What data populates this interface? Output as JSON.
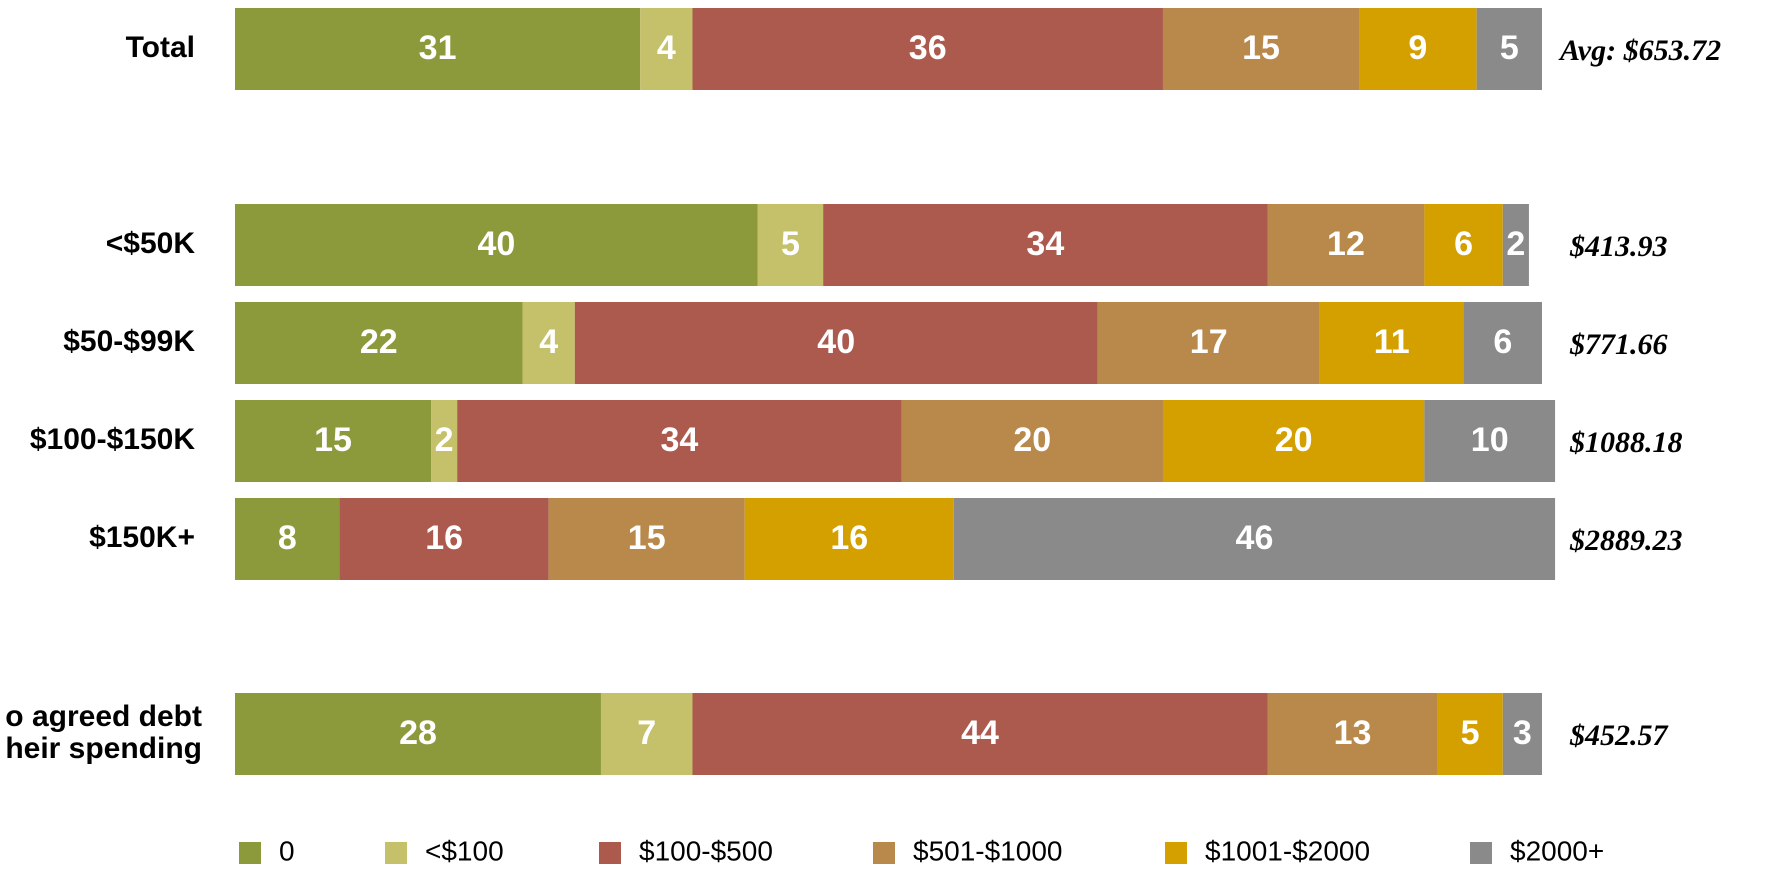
{
  "chart_data": {
    "type": "stacked-bar-horizontal",
    "categories": [
      "Total",
      "<$50K",
      "$50-$99K",
      "$100-$150K",
      "$150K+",
      "o agreed debt\nheir spending"
    ],
    "annotations": [
      "Avg: $653.72",
      "$413.93",
      "$771.66",
      "$1088.18",
      "$2889.23",
      "$452.57"
    ],
    "xlim": [
      0,
      100
    ],
    "series": [
      {
        "name": "0",
        "color": "#8c9a3b",
        "values": [
          31,
          40,
          22,
          15,
          8,
          28
        ]
      },
      {
        "name": "<$100",
        "color": "#c5c06a",
        "values": [
          4,
          5,
          4,
          2,
          null,
          7
        ]
      },
      {
        "name": "$100-$500",
        "color": "#ad5a4e",
        "values": [
          36,
          34,
          40,
          34,
          16,
          44
        ]
      },
      {
        "name": "$501-$1000",
        "color": "#b8894a",
        "values": [
          15,
          12,
          17,
          20,
          15,
          13
        ]
      },
      {
        "name": "$1001-$2000",
        "color": "#d4a000",
        "values": [
          9,
          6,
          11,
          20,
          16,
          5
        ]
      },
      {
        "name": "$2000+",
        "color": "#8a8a8a",
        "values": [
          5,
          2,
          6,
          10,
          46,
          3
        ]
      }
    ]
  }
}
